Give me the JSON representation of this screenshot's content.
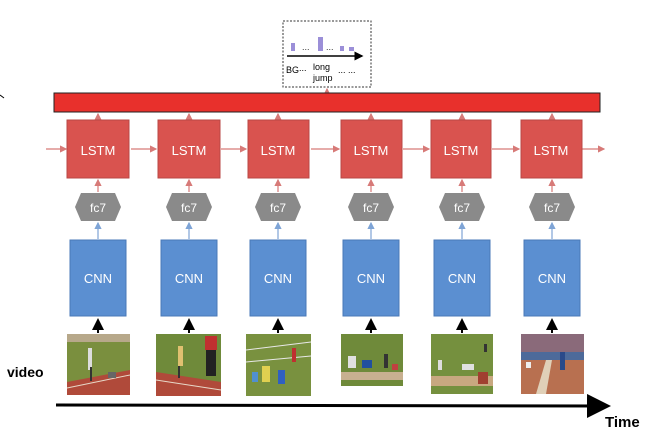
{
  "diagram": {
    "steps": [
      {
        "lstm": "LSTM",
        "fc": "fc7",
        "cnn": "CNN"
      },
      {
        "lstm": "LSTM",
        "fc": "fc7",
        "cnn": "CNN"
      },
      {
        "lstm": "LSTM",
        "fc": "fc7",
        "cnn": "CNN"
      },
      {
        "lstm": "LSTM",
        "fc": "fc7",
        "cnn": "CNN"
      },
      {
        "lstm": "LSTM",
        "fc": "fc7",
        "cnn": "CNN"
      },
      {
        "lstm": "LSTM",
        "fc": "fc7",
        "cnn": "CNN"
      }
    ],
    "video_label": "video",
    "time_label": "Time",
    "inset": {
      "bg_label": "BG",
      "dots_a": "...",
      "class_line1": "long",
      "class_line2": "jump",
      "dots_b": "... ...",
      "bar_dots_1": "...",
      "bar_dots_2": "..."
    },
    "colors": {
      "lstm": "#d9534f",
      "lstm_border": "#b94744",
      "output_bar": "#e8302c",
      "fc": "#8a8a8a",
      "cnn": "#5b8fd1",
      "cnn_border": "#4a7ab8",
      "arrow": "#d77a78",
      "histogram": "#9b8fd8"
    }
  }
}
